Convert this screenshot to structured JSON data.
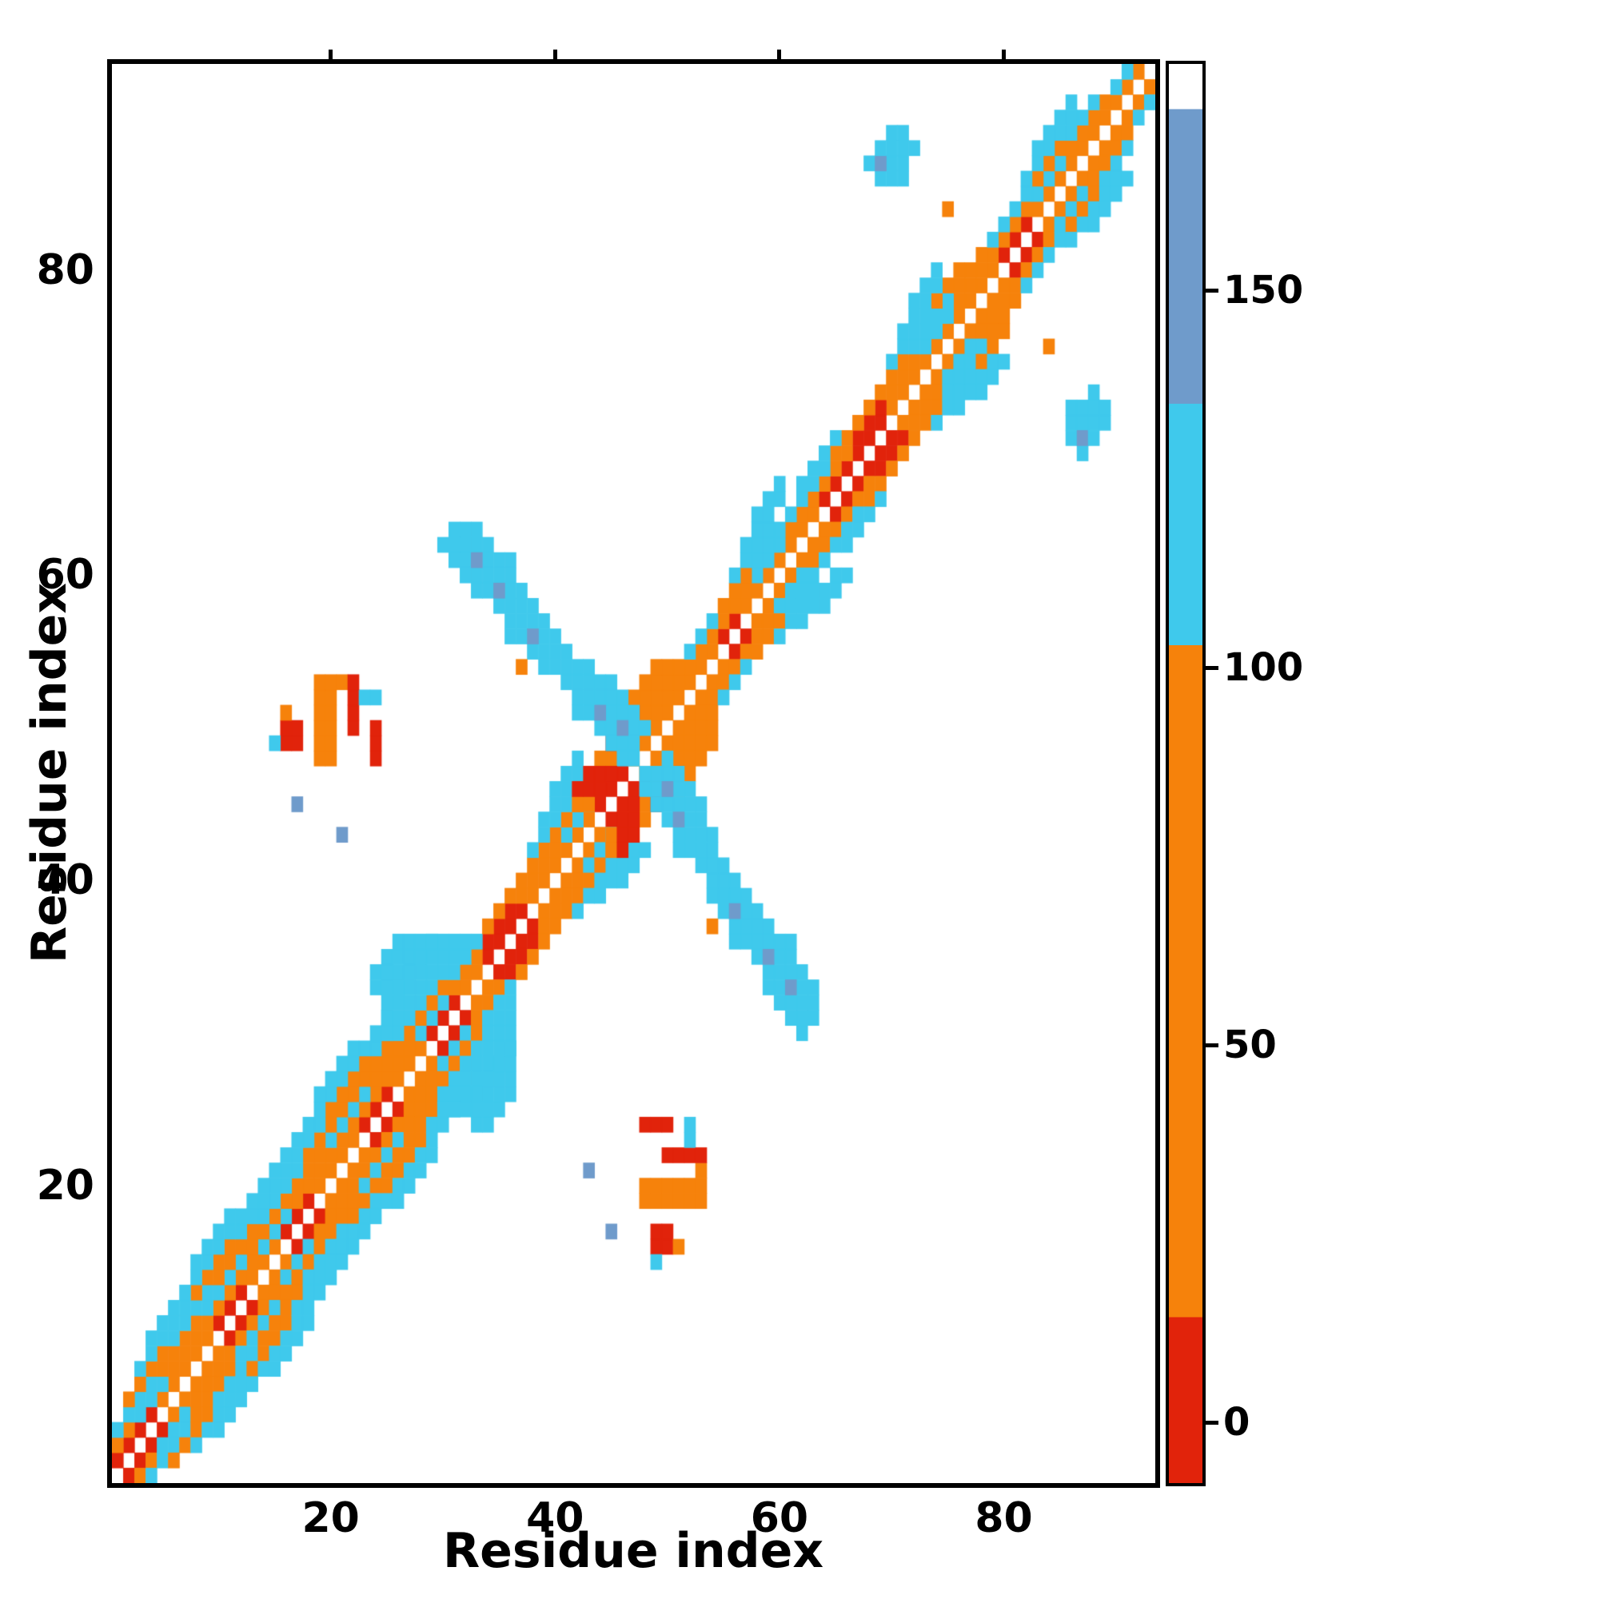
{
  "page": {
    "background": "#ffffff"
  },
  "chart_data": {
    "type": "heatmap",
    "title": "",
    "xlabel": "Residue index",
    "ylabel": "Residue index",
    "n_residues": 93,
    "x_ticks": [
      20,
      40,
      60,
      80
    ],
    "y_ticks": [
      20,
      40,
      60,
      80
    ],
    "grid": false,
    "legend": "colorbar-right",
    "value_range": [
      -8,
      180
    ],
    "colorbar": {
      "position": "right",
      "ticks": [
        0,
        50,
        100,
        150
      ],
      "segments": [
        {
          "from": -8,
          "to": 14,
          "color": "#e1230b"
        },
        {
          "from": 14,
          "to": 103,
          "color": "#f6820b"
        },
        {
          "from": 103,
          "to": 135,
          "color": "#3fc9ec"
        },
        {
          "from": 135,
          "to": 174,
          "color": "#6f9bcb"
        },
        {
          "from": 174,
          "to": 180,
          "color": "#ffffff"
        }
      ]
    },
    "value_codes": {
      "R": 5,
      "O": 55,
      "C": 115,
      "B": 150
    },
    "diag_bands": [
      {
        "offset": 1,
        "segments": [
          [
            1,
            4,
            "R"
          ],
          [
            5,
            9,
            "O"
          ],
          [
            10,
            12,
            "R"
          ],
          [
            13,
            15,
            "O"
          ],
          [
            16,
            18,
            "R"
          ],
          [
            19,
            22,
            "O"
          ],
          [
            23,
            25,
            "R"
          ],
          [
            26,
            28,
            "O"
          ],
          [
            29,
            31,
            "R"
          ],
          [
            32,
            33,
            "O"
          ],
          [
            34,
            37,
            "R"
          ],
          [
            38,
            41,
            "O"
          ],
          [
            42,
            43,
            "O"
          ],
          [
            44,
            46,
            "R"
          ],
          [
            47,
            50,
            "O"
          ],
          [
            51,
            54,
            "O"
          ],
          [
            55,
            56,
            "R"
          ],
          [
            57,
            60,
            "O"
          ],
          [
            61,
            63,
            "O"
          ],
          [
            64,
            65,
            "R"
          ],
          [
            66,
            69,
            "R"
          ],
          [
            70,
            73,
            "O"
          ],
          [
            74,
            76,
            "O"
          ],
          [
            77,
            79,
            "O"
          ],
          [
            80,
            82,
            "R"
          ],
          [
            83,
            86,
            "O"
          ],
          [
            87,
            92,
            "O"
          ]
        ]
      },
      {
        "offset": 2,
        "segments": [
          [
            1,
            2,
            "O"
          ],
          [
            3,
            5,
            "C"
          ],
          [
            6,
            9,
            "O"
          ],
          [
            10,
            13,
            "O"
          ],
          [
            14,
            16,
            "C"
          ],
          [
            17,
            20,
            "O"
          ],
          [
            21,
            23,
            "O"
          ],
          [
            24,
            27,
            "O"
          ],
          [
            28,
            30,
            "C"
          ],
          [
            31,
            33,
            "O"
          ],
          [
            34,
            36,
            "R"
          ],
          [
            37,
            40,
            "O"
          ],
          [
            41,
            43,
            "C"
          ],
          [
            44,
            46,
            "R"
          ],
          [
            47,
            49,
            "O"
          ],
          [
            50,
            53,
            "O"
          ],
          [
            54,
            57,
            "O"
          ],
          [
            58,
            60,
            "C"
          ],
          [
            61,
            63,
            "O"
          ],
          [
            64,
            66,
            "O"
          ],
          [
            67,
            69,
            "R"
          ],
          [
            70,
            72,
            "O"
          ],
          [
            73,
            75,
            "C"
          ],
          [
            76,
            79,
            "O"
          ],
          [
            80,
            82,
            "O"
          ],
          [
            83,
            85,
            "C"
          ],
          [
            86,
            89,
            "O"
          ],
          [
            90,
            91,
            "C"
          ]
        ]
      },
      {
        "offset": 3,
        "segments": [
          [
            1,
            4,
            "C"
          ],
          [
            5,
            8,
            "O"
          ],
          [
            9,
            12,
            "C"
          ],
          [
            13,
            16,
            "O"
          ],
          [
            17,
            19,
            "O"
          ],
          [
            20,
            23,
            "C"
          ],
          [
            24,
            26,
            "O"
          ],
          [
            27,
            30,
            "O"
          ],
          [
            31,
            33,
            "C"
          ],
          [
            34,
            37,
            "O"
          ],
          [
            38,
            40,
            "O"
          ],
          [
            41,
            43,
            "O"
          ],
          [
            44,
            47,
            "O"
          ],
          [
            48,
            51,
            "O"
          ],
          [
            52,
            54,
            "C"
          ],
          [
            55,
            57,
            "O"
          ],
          [
            58,
            61,
            "C"
          ],
          [
            62,
            64,
            "C"
          ],
          [
            65,
            68,
            "O"
          ],
          [
            69,
            71,
            "O"
          ],
          [
            72,
            75,
            "C"
          ],
          [
            76,
            78,
            "O"
          ],
          [
            79,
            82,
            "C"
          ],
          [
            83,
            85,
            "O"
          ],
          [
            86,
            88,
            "C"
          ]
        ]
      },
      {
        "offset": 4,
        "segments": [
          [
            2,
            5,
            "O"
          ],
          [
            6,
            9,
            "C"
          ],
          [
            10,
            13,
            "O"
          ],
          [
            14,
            17,
            "C"
          ],
          [
            18,
            21,
            "O"
          ],
          [
            22,
            25,
            "O"
          ],
          [
            26,
            29,
            "C"
          ],
          [
            30,
            32,
            "C"
          ],
          [
            38,
            41,
            "C"
          ],
          [
            42,
            44,
            "O"
          ],
          [
            45,
            47,
            "R"
          ],
          [
            48,
            50,
            "O"
          ],
          [
            56,
            59,
            "C"
          ],
          [
            62,
            65,
            "C"
          ],
          [
            70,
            73,
            "C"
          ],
          [
            74,
            76,
            "O"
          ],
          [
            82,
            86,
            "C"
          ]
        ]
      },
      {
        "offset": 5,
        "segments": [
          [
            3,
            7,
            "C"
          ],
          [
            8,
            11,
            "O"
          ],
          [
            12,
            15,
            "C"
          ],
          [
            16,
            19,
            "C"
          ],
          [
            20,
            23,
            "O"
          ],
          [
            24,
            27,
            "C"
          ],
          [
            28,
            31,
            "C"
          ],
          [
            39,
            42,
            "C"
          ],
          [
            46,
            49,
            "O"
          ],
          [
            57,
            60,
            "C"
          ],
          [
            71,
            74,
            "C"
          ],
          [
            83,
            86,
            "C"
          ]
        ]
      },
      {
        "offset": 6,
        "segments": [
          [
            4,
            8,
            "C"
          ],
          [
            9,
            12,
            "C"
          ],
          [
            13,
            16,
            "C"
          ],
          [
            17,
            20,
            "C"
          ],
          [
            21,
            24,
            "C"
          ],
          [
            25,
            30,
            "C"
          ],
          [
            40,
            42,
            "C"
          ],
          [
            58,
            60,
            "C"
          ],
          [
            72,
            74,
            "C"
          ]
        ]
      },
      {
        "offset": 7,
        "segments": [
          [
            8,
            11,
            "C"
          ],
          [
            19,
            22,
            "C"
          ],
          [
            26,
            29,
            "C"
          ]
        ]
      }
    ],
    "cluster_runs": [
      [
        63,
        31,
        33,
        "C"
      ],
      [
        62,
        30,
        34,
        "C"
      ],
      [
        61,
        31,
        36,
        "C"
      ],
      [
        60,
        32,
        36,
        "C"
      ],
      [
        59,
        33,
        37,
        "C"
      ],
      [
        58,
        35,
        38,
        "C"
      ],
      [
        57,
        36,
        39,
        "C"
      ],
      [
        56,
        36,
        40,
        "C"
      ],
      [
        55,
        38,
        41,
        "C"
      ],
      [
        54,
        39,
        43,
        "C"
      ],
      [
        53,
        41,
        45,
        "C"
      ],
      [
        52,
        42,
        46,
        "C"
      ],
      [
        51,
        42,
        47,
        "C"
      ],
      [
        50,
        44,
        48,
        "C"
      ],
      [
        49,
        45,
        47,
        "C"
      ],
      [
        48,
        46,
        47,
        "C"
      ],
      [
        61,
        33,
        33,
        "B"
      ],
      [
        59,
        35,
        35,
        "B"
      ],
      [
        56,
        38,
        38,
        "B"
      ],
      [
        51,
        44,
        44,
        "B"
      ],
      [
        50,
        46,
        46,
        "B"
      ],
      [
        33,
        24,
        26,
        "C"
      ],
      [
        34,
        24,
        27,
        "C"
      ],
      [
        35,
        25,
        28,
        "C"
      ],
      [
        36,
        26,
        29,
        "C"
      ],
      [
        25,
        30,
        34,
        "C"
      ],
      [
        48,
        19,
        20,
        "O"
      ],
      [
        49,
        16,
        17,
        "R"
      ],
      [
        49,
        19,
        20,
        "O"
      ],
      [
        50,
        16,
        17,
        "R"
      ],
      [
        50,
        19,
        20,
        "O"
      ],
      [
        50,
        22,
        22,
        "R"
      ],
      [
        51,
        16,
        16,
        "O"
      ],
      [
        51,
        19,
        20,
        "O"
      ],
      [
        51,
        22,
        22,
        "R"
      ],
      [
        52,
        19,
        20,
        "O"
      ],
      [
        52,
        22,
        22,
        "R"
      ],
      [
        52,
        23,
        23,
        "C"
      ],
      [
        53,
        19,
        21,
        "O"
      ],
      [
        53,
        22,
        22,
        "R"
      ],
      [
        49,
        15,
        15,
        "C"
      ],
      [
        45,
        17,
        17,
        "B"
      ],
      [
        43,
        21,
        21,
        "B"
      ],
      [
        24,
        48,
        50,
        "R"
      ],
      [
        24,
        52,
        52,
        "C"
      ],
      [
        86,
        69,
        71,
        "C"
      ],
      [
        87,
        68,
        71,
        "C"
      ],
      [
        87,
        69,
        69,
        "B"
      ],
      [
        88,
        69,
        72,
        "C"
      ],
      [
        89,
        70,
        71,
        "C"
      ],
      [
        84,
        75,
        75,
        "O"
      ],
      [
        54,
        37,
        37,
        "O"
      ],
      [
        45,
        42,
        43,
        "O"
      ],
      [
        46,
        42,
        44,
        "R"
      ],
      [
        47,
        43,
        45,
        "R"
      ]
    ]
  }
}
